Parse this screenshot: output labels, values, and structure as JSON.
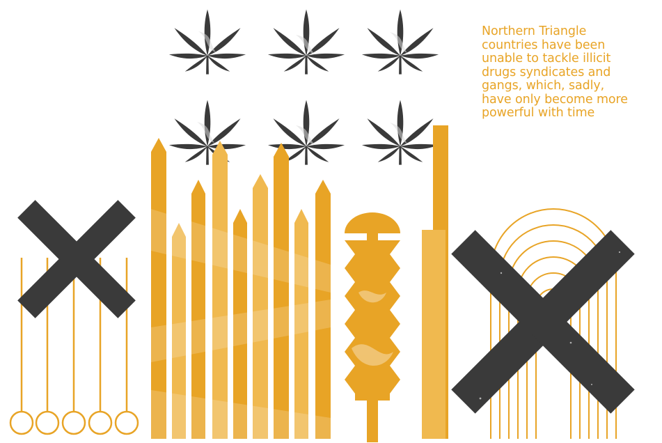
{
  "caption": {
    "lines": [
      "Northern Triangle",
      "countries have been",
      "unable to tackle illicit",
      "drugs syndicates and",
      "gangs, which, sadly,",
      "have only become more",
      "powerful with time"
    ]
  },
  "colors": {
    "accent": "#e8a426",
    "accent_light": "#f1c063",
    "dark": "#3a3a3a",
    "background": "#ffffff"
  },
  "illustration": {
    "icons": [
      "cannabis-leaf-icon",
      "x-mark-icon",
      "fence-icon",
      "comb-icon",
      "arch-icon",
      "pendulum-icon"
    ]
  }
}
